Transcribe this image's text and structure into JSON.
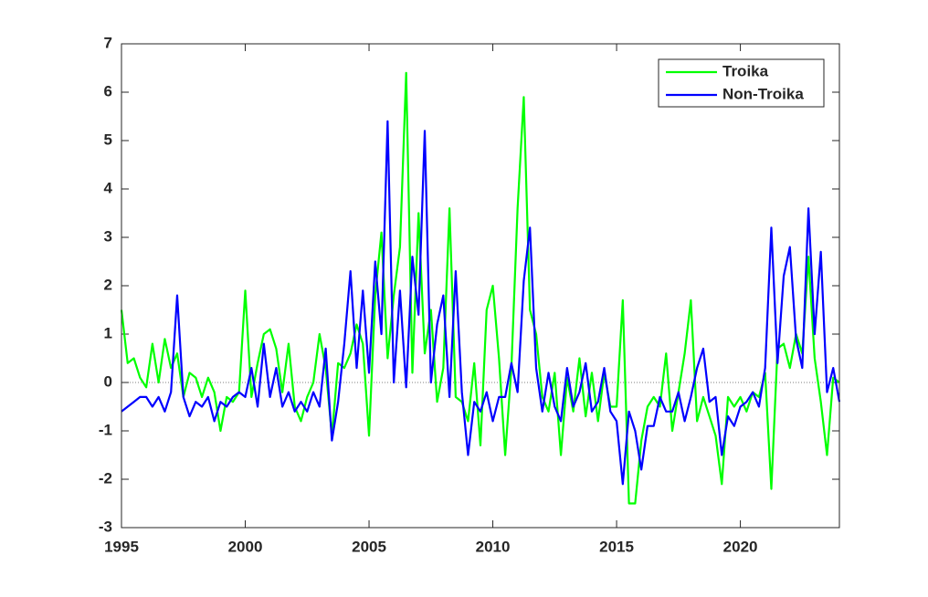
{
  "chart_data": {
    "type": "line",
    "x": [
      1995,
      1995.25,
      1995.5,
      1995.75,
      1996,
      1996.25,
      1996.5,
      1996.75,
      1997,
      1997.25,
      1997.5,
      1997.75,
      1998,
      1998.25,
      1998.5,
      1998.75,
      1999,
      1999.25,
      1999.5,
      1999.75,
      2000,
      2000.25,
      2000.5,
      2000.75,
      2001,
      2001.25,
      2001.5,
      2001.75,
      2002,
      2002.25,
      2002.5,
      2002.75,
      2003,
      2003.25,
      2003.5,
      2003.75,
      2004,
      2004.25,
      2004.5,
      2004.75,
      2005,
      2005.25,
      2005.5,
      2005.75,
      2006,
      2006.25,
      2006.5,
      2006.75,
      2007,
      2007.25,
      2007.5,
      2007.75,
      2008,
      2008.25,
      2008.5,
      2008.75,
      2009,
      2009.25,
      2009.5,
      2009.75,
      2010,
      2010.25,
      2010.5,
      2010.75,
      2011,
      2011.25,
      2011.5,
      2011.75,
      2012,
      2012.25,
      2012.5,
      2012.75,
      2013,
      2013.25,
      2013.5,
      2013.75,
      2014,
      2014.25,
      2014.5,
      2014.75,
      2015,
      2015.25,
      2015.5,
      2015.75,
      2016,
      2016.25,
      2016.5,
      2016.75,
      2017,
      2017.25,
      2017.5,
      2017.75,
      2018,
      2018.25,
      2018.5,
      2018.75,
      2019,
      2019.25,
      2019.5,
      2019.75,
      2020,
      2020.25,
      2020.5,
      2020.75,
      2021,
      2021.25,
      2021.5,
      2021.75,
      2022,
      2022.25,
      2022.5,
      2022.75,
      2023,
      2023.25,
      2023.5,
      2023.75,
      2024
    ],
    "series": [
      {
        "name": "Troika",
        "color": "#00ff00",
        "values": [
          1.5,
          0.4,
          0.5,
          0.1,
          -0.1,
          0.8,
          0.0,
          0.9,
          0.3,
          0.6,
          -0.3,
          0.2,
          0.1,
          -0.3,
          0.1,
          -0.2,
          -1.0,
          -0.3,
          -0.4,
          -0.2,
          1.9,
          -0.3,
          0.4,
          1.0,
          1.1,
          0.7,
          -0.2,
          0.8,
          -0.5,
          -0.8,
          -0.3,
          0.0,
          1.0,
          0.3,
          -1.1,
          0.4,
          0.3,
          0.6,
          1.2,
          0.8,
          -1.1,
          1.8,
          3.1,
          0.5,
          1.8,
          2.8,
          6.4,
          0.2,
          3.5,
          0.6,
          1.5,
          -0.4,
          0.3,
          3.6,
          -0.3,
          -0.4,
          -0.8,
          0.4,
          -1.3,
          1.5,
          2.0,
          0.5,
          -1.5,
          0.3,
          3.6,
          5.9,
          1.5,
          1.0,
          -0.3,
          -0.6,
          0.2,
          -1.5,
          0.1,
          -0.6,
          0.5,
          -0.7,
          0.2,
          -0.8,
          0.2,
          -0.5,
          -0.5,
          1.7,
          -2.5,
          -2.5,
          -1.2,
          -0.5,
          -0.3,
          -0.5,
          0.6,
          -1.0,
          -0.2,
          0.6,
          1.7,
          -0.8,
          -0.3,
          -0.7,
          -1.1,
          -2.1,
          -0.3,
          -0.5,
          -0.3,
          -0.6,
          -0.2,
          -0.3,
          0.2,
          -2.2,
          0.7,
          0.8,
          0.3,
          1.0,
          0.6,
          2.6,
          0.5,
          -0.4,
          -1.5,
          0.1,
          0.0
        ]
      },
      {
        "name": "Non-Troika",
        "color": "#0000ff",
        "values": [
          -0.6,
          -0.5,
          -0.4,
          -0.3,
          -0.3,
          -0.5,
          -0.3,
          -0.6,
          -0.2,
          1.8,
          -0.3,
          -0.7,
          -0.4,
          -0.5,
          -0.3,
          -0.8,
          -0.4,
          -0.5,
          -0.3,
          -0.2,
          -0.3,
          0.3,
          -0.5,
          0.8,
          -0.3,
          0.3,
          -0.5,
          -0.2,
          -0.6,
          -0.4,
          -0.6,
          -0.2,
          -0.5,
          0.7,
          -1.2,
          -0.4,
          0.8,
          2.3,
          0.3,
          1.9,
          0.2,
          2.5,
          1.0,
          5.4,
          0.0,
          1.9,
          -0.1,
          2.6,
          1.4,
          5.2,
          0.0,
          1.2,
          1.8,
          -0.3,
          2.3,
          -0.2,
          -1.5,
          -0.4,
          -0.6,
          -0.2,
          -0.8,
          -0.3,
          -0.3,
          0.4,
          -0.2,
          2.1,
          3.2,
          0.3,
          -0.6,
          0.2,
          -0.5,
          -0.8,
          0.3,
          -0.5,
          -0.2,
          0.4,
          -0.6,
          -0.4,
          0.3,
          -0.6,
          -0.8,
          -2.1,
          -0.6,
          -1.0,
          -1.8,
          -0.9,
          -0.9,
          -0.3,
          -0.6,
          -0.6,
          -0.2,
          -0.8,
          -0.3,
          0.3,
          0.7,
          -0.4,
          -0.3,
          -1.5,
          -0.7,
          -0.9,
          -0.5,
          -0.4,
          -0.2,
          -0.5,
          0.3,
          3.2,
          0.4,
          2.2,
          2.8,
          0.9,
          0.3,
          3.6,
          1.0,
          2.7,
          -0.2,
          0.3,
          -0.4
        ]
      }
    ],
    "xlim": [
      1995,
      2024
    ],
    "xticks": [
      1995,
      2000,
      2005,
      2010,
      2015,
      2020
    ],
    "ylim": [
      -3,
      7
    ],
    "yticks": [
      -3,
      -2,
      -1,
      0,
      1,
      2,
      3,
      4,
      5,
      6,
      7
    ],
    "zero_line": true,
    "legend": "northeast"
  }
}
